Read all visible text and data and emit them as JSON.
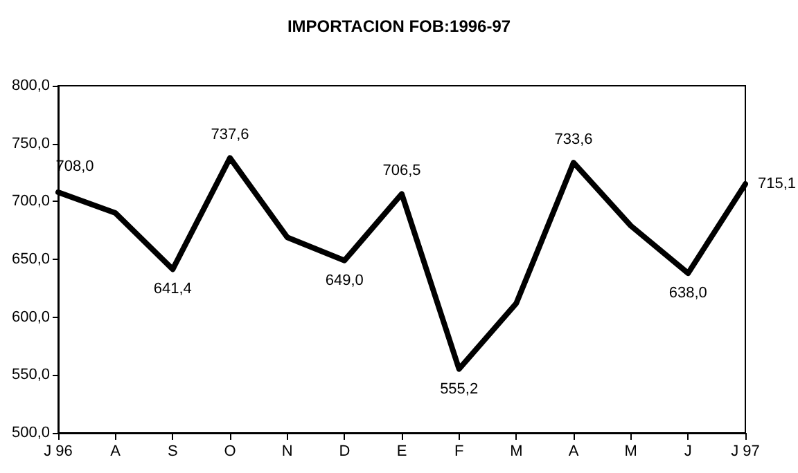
{
  "chart_data": {
    "type": "line",
    "title": "IMPORTACION FOB:1996-97",
    "categories": [
      "J 96",
      "A",
      "S",
      "O",
      "N",
      "D",
      "E",
      "F",
      "M",
      "A",
      "M",
      "J",
      "J 97"
    ],
    "series": [
      {
        "color": "#000000",
        "values": [
          708.0,
          690,
          641.4,
          737.6,
          669,
          649.0,
          706.5,
          555.2,
          612,
          733.6,
          679,
          638.0,
          715.1
        ],
        "value_labels": [
          "708,0",
          null,
          "641,4",
          "737,6",
          null,
          "649,0",
          "706,5",
          "555,2",
          null,
          "733,6",
          null,
          "638,0",
          "715,1"
        ]
      }
    ],
    "ylim": [
      500,
      800
    ],
    "yticks": [
      {
        "value": 500,
        "label": "500,0"
      },
      {
        "value": 550,
        "label": "550,0"
      },
      {
        "value": 600,
        "label": "600,0"
      },
      {
        "value": 650,
        "label": "650,0"
      },
      {
        "value": 700,
        "label": "700,0"
      },
      {
        "value": 750,
        "label": "750,0"
      },
      {
        "value": 800,
        "label": "800,0"
      }
    ],
    "grid": false,
    "marker": "none",
    "line_style": "solid"
  }
}
